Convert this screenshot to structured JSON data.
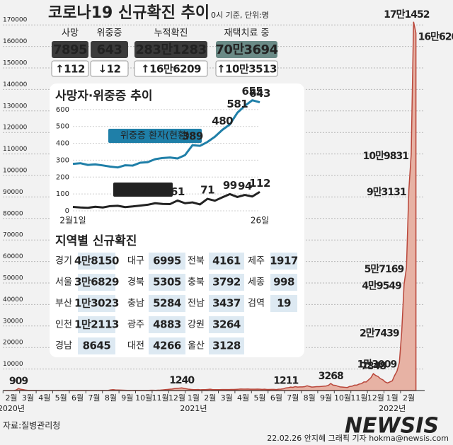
{
  "header": {
    "title": "코로나19 신규확진 추이",
    "subtitle": "0시 기준, 단위:명"
  },
  "stats": [
    {
      "label": "사망",
      "value": 7895,
      "change": "↑112",
      "color": "#c0392b"
    },
    {
      "label": "위중증",
      "value": 643,
      "change": "↓12",
      "color": "#3f74b5"
    },
    {
      "label": "누적확진",
      "value": "283만1283",
      "change": "↑16만6209",
      "color": "#222222"
    },
    {
      "label": "재택치료 중",
      "value": "70만3694",
      "change": "↑10만3513",
      "color": "#222222"
    }
  ],
  "chart_data": [
    {
      "type": "area",
      "color": "#b9473b",
      "fill_color": "#e7b2a4",
      "categories": [
        "2월",
        null,
        null,
        null,
        null,
        null,
        null,
        "3월",
        null,
        null,
        null,
        null,
        null,
        null,
        "4월",
        null,
        null,
        null,
        null,
        null,
        null,
        "5월",
        null,
        null,
        null,
        null,
        null,
        null,
        "6월",
        null,
        null,
        null,
        null,
        null,
        null,
        "7월",
        null,
        null,
        null,
        null,
        null,
        null,
        "8월",
        null,
        null,
        null,
        null,
        null,
        null,
        "9월",
        null,
        null,
        null,
        null,
        null,
        null,
        "10월",
        null,
        null,
        null,
        null,
        null,
        null,
        "11월",
        null,
        null,
        null,
        null,
        null,
        null,
        "12월",
        null,
        null,
        null,
        null,
        null,
        null,
        "1월",
        null,
        null,
        null,
        null,
        null,
        null,
        "2월",
        null,
        null,
        null,
        null,
        null,
        null,
        "3월",
        null,
        null,
        null,
        null,
        null,
        null,
        "4월",
        null,
        null,
        null,
        null,
        null,
        null,
        "5월",
        null,
        null,
        null,
        null,
        null,
        null,
        "6월",
        null,
        null,
        null,
        null,
        null,
        null,
        "7월",
        null,
        null,
        null,
        null,
        null,
        null,
        "8월",
        null,
        null,
        null,
        null,
        null,
        null,
        "9월",
        null,
        null,
        null,
        null,
        null,
        null,
        "10월",
        null,
        null,
        null,
        null,
        null,
        null,
        "11월",
        null,
        null,
        null,
        null,
        null,
        null,
        "12월",
        null,
        null,
        null,
        null,
        null,
        null,
        "1월",
        null,
        null,
        null,
        null,
        null,
        null,
        "2월",
        null,
        null,
        null,
        null,
        null,
        null
      ],
      "values": [
        0,
        0,
        0,
        0,
        10,
        200,
        909,
        600,
        400,
        200,
        100,
        100,
        90,
        80,
        50,
        40,
        30,
        20,
        10,
        10,
        10,
        10,
        20,
        30,
        20,
        30,
        40,
        40,
        40,
        50,
        50,
        40,
        50,
        50,
        50,
        50,
        40,
        40,
        50,
        40,
        30,
        30,
        30,
        40,
        100,
        300,
        400,
        300,
        250,
        200,
        150,
        120,
        100,
        80,
        60,
        100,
        70,
        80,
        100,
        80,
        90,
        100,
        120,
        120,
        100,
        150,
        200,
        300,
        400,
        500,
        600,
        700,
        900,
        1000,
        1100,
        1240,
        1000,
        800,
        600,
        500,
        400,
        400,
        450,
        350,
        400,
        400,
        500,
        600,
        450,
        400,
        400,
        400,
        450,
        450,
        450,
        450,
        500,
        500,
        550,
        600,
        700,
        650,
        650,
        700,
        600,
        600,
        600,
        650,
        600,
        550,
        600,
        500,
        500,
        550,
        550,
        450,
        600,
        650,
        800,
        1211,
        1300,
        1600,
        1500,
        1800,
        1600,
        1700,
        1700,
        1800,
        2200,
        1900,
        1600,
        1700,
        1800,
        1800,
        1900,
        2000,
        2100,
        2400,
        3268,
        2500,
        2400,
        2000,
        1700,
        1600,
        1500,
        1400,
        1900,
        2000,
        2500,
        2500,
        3000,
        3200,
        4000,
        4000,
        5000,
        6000,
        7848,
        7000,
        6500,
        5500,
        5000,
        4000,
        3500,
        4000,
        4500,
        7000,
        9000,
        13009,
        27439,
        49549,
        57169,
        93131,
        109831,
        171452,
        166209
      ],
      "value_labels": [
        null,
        null,
        null,
        null,
        null,
        null,
        "909",
        null,
        null,
        null,
        null,
        null,
        null,
        null,
        null,
        null,
        null,
        null,
        null,
        null,
        null,
        null,
        null,
        null,
        null,
        null,
        null,
        null,
        null,
        null,
        null,
        null,
        null,
        null,
        null,
        null,
        null,
        null,
        null,
        null,
        null,
        null,
        null,
        null,
        null,
        null,
        null,
        null,
        null,
        null,
        null,
        null,
        null,
        null,
        null,
        null,
        null,
        null,
        null,
        null,
        null,
        null,
        null,
        null,
        null,
        null,
        null,
        null,
        null,
        null,
        null,
        null,
        null,
        null,
        null,
        "1240",
        null,
        null,
        null,
        null,
        null,
        null,
        null,
        null,
        null,
        null,
        null,
        null,
        null,
        null,
        null,
        null,
        null,
        null,
        null,
        null,
        null,
        null,
        null,
        null,
        null,
        null,
        null,
        null,
        null,
        null,
        null,
        null,
        null,
        null,
        null,
        null,
        null,
        null,
        null,
        null,
        null,
        null,
        null,
        "1211",
        null,
        null,
        null,
        null,
        null,
        null,
        null,
        null,
        null,
        null,
        null,
        null,
        null,
        null,
        null,
        null,
        null,
        null,
        "3268",
        null,
        null,
        null,
        null,
        null,
        null,
        null,
        null,
        null,
        null,
        null,
        null,
        null,
        null,
        null,
        null,
        null,
        "7848",
        null,
        null,
        null,
        null,
        null,
        null,
        null,
        null,
        null,
        null,
        "1만3009",
        "2만7439",
        "4만9549",
        "5만7169",
        "9만3131",
        "10만9831",
        "17만1452",
        "16만6209"
      ],
      "ylim": [
        0,
        175000
      ],
      "yticks": [
        10000,
        20000,
        30000,
        40000,
        50000,
        60000,
        70000,
        80000,
        90000,
        100000,
        110000,
        120000,
        130000,
        140000,
        150000,
        160000,
        170000
      ],
      "grid": true,
      "year_labels": [
        "2020년",
        "2021년",
        "2022년"
      ]
    },
    {
      "type": "line",
      "title": "사망자·위중증 추이",
      "categories": [
        "2월1일",
        null,
        null,
        null,
        null,
        null,
        null,
        null,
        null,
        null,
        null,
        null,
        null,
        null,
        null,
        null,
        null,
        null,
        null,
        null,
        null,
        null,
        null,
        null,
        null,
        "26일"
      ],
      "series": [
        {
          "name": "위중증 환자(현황)",
          "color": "#1f7fa8",
          "values": [
            278,
            282,
            272,
            275,
            269,
            262,
            257,
            270,
            268,
            285,
            288,
            306,
            313,
            316,
            310,
            330,
            389,
            385,
            408,
            439,
            480,
            512,
            581,
            622,
            655,
            643
          ],
          "value_labels": [
            null,
            null,
            null,
            null,
            null,
            null,
            null,
            null,
            null,
            null,
            null,
            null,
            null,
            null,
            null,
            null,
            "389",
            null,
            null,
            null,
            "480",
            null,
            "581",
            null,
            "655",
            "643"
          ]
        },
        {
          "name": "사망자(신규)",
          "color": "#222222",
          "values": [
            23,
            20,
            18,
            24,
            20,
            28,
            30,
            22,
            26,
            31,
            36,
            45,
            41,
            40,
            61,
            45,
            50,
            38,
            71,
            60,
            80,
            99,
            82,
            94,
            85,
            112
          ],
          "value_labels": [
            null,
            null,
            null,
            null,
            null,
            null,
            null,
            null,
            null,
            null,
            null,
            null,
            null,
            null,
            "61",
            null,
            null,
            null,
            "71",
            null,
            null,
            "99",
            null,
            "94",
            null,
            "112"
          ]
        }
      ],
      "ylim": [
        0,
        700
      ],
      "yticks": [
        0,
        100,
        200,
        300,
        400,
        500,
        600
      ],
      "grid": true
    }
  ],
  "regions": {
    "title": "지역별 신규확진",
    "rows": [
      [
        {
          "name": "경기",
          "value": "4만8150"
        },
        {
          "name": "대구",
          "value": "6995"
        },
        {
          "name": "전북",
          "value": "4161"
        },
        {
          "name": "제주",
          "value": "1917"
        }
      ],
      [
        {
          "name": "서울",
          "value": "3만6829"
        },
        {
          "name": "경북",
          "value": "5305"
        },
        {
          "name": "충북",
          "value": "3792"
        },
        {
          "name": "세종",
          "value": "998"
        }
      ],
      [
        {
          "name": "부산",
          "value": "1만3023"
        },
        {
          "name": "충남",
          "value": "5284"
        },
        {
          "name": "전남",
          "value": "3437"
        },
        {
          "name": "검역",
          "value": "19"
        }
      ],
      [
        {
          "name": "인천",
          "value": "1만2113"
        },
        {
          "name": "광주",
          "value": "4883"
        },
        {
          "name": "강원",
          "value": "3264"
        }
      ],
      [
        {
          "name": "경남",
          "value": "8645"
        },
        {
          "name": "대전",
          "value": "4266"
        },
        {
          "name": "울산",
          "value": "3128"
        }
      ]
    ]
  },
  "footer": {
    "source": "자료:질병관리청",
    "credit": "22.02.26 안지혜 그래픽 기자 hokma@newsis.com",
    "logo": "NEWSIS"
  }
}
